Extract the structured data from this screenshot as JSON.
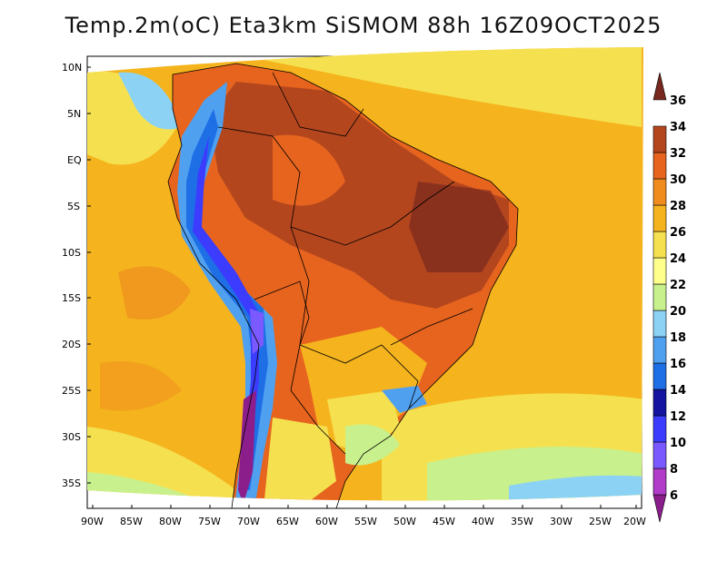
{
  "title": "Temp.2m(oC) Eta3km SiSMOM 88h 16Z09OCT2025",
  "map": {
    "lat_labels": [
      "10N",
      "5N",
      "EQ",
      "5S",
      "10S",
      "15S",
      "20S",
      "25S",
      "30S",
      "35S"
    ],
    "lon_labels": [
      "90W",
      "85W",
      "80W",
      "75W",
      "70W",
      "65W",
      "60W",
      "55W",
      "50W",
      "45W",
      "40W",
      "35W",
      "30W",
      "25W",
      "20W"
    ]
  },
  "colorbar": {
    "levels": [
      "6",
      "8",
      "10",
      "12",
      "14",
      "16",
      "18",
      "20",
      "22",
      "24",
      "26",
      "28",
      "30",
      "32",
      "34",
      "36"
    ],
    "colors": [
      "#8c1e8c",
      "#b03cc8",
      "#7a5aff",
      "#3c3cff",
      "#1414a0",
      "#1e6ee6",
      "#50a0f0",
      "#8cd2f5",
      "#c8f08c",
      "#ffff8c",
      "#f5e150",
      "#f5b41e",
      "#f08c1e",
      "#e6641e",
      "#b4461e",
      "#78281e"
    ]
  }
}
